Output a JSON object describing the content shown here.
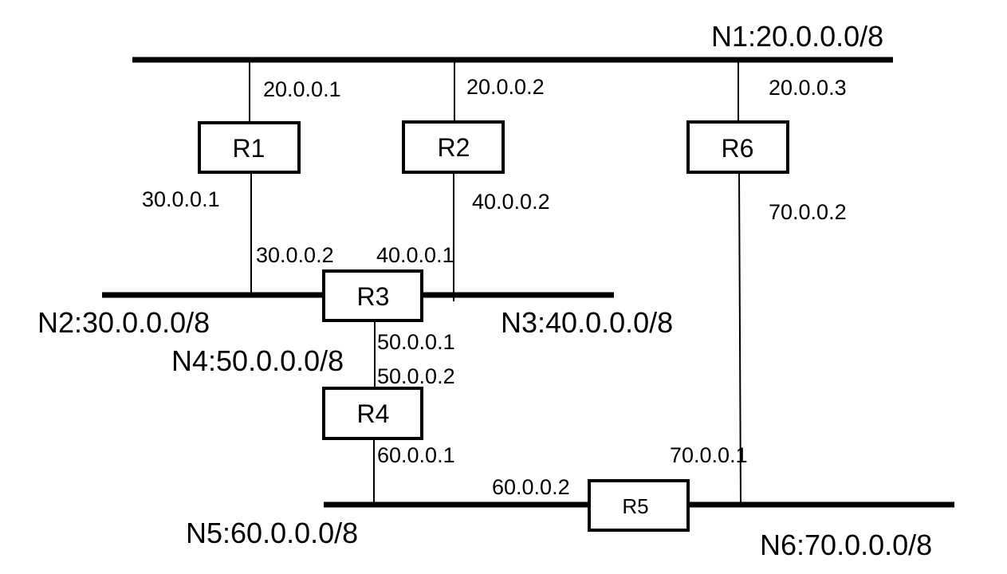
{
  "networks": {
    "n1": "N1:20.0.0.0/8",
    "n2": "N2:30.0.0.0/8",
    "n3": "N3:40.0.0.0/8",
    "n4": "N4:50.0.0.0/8",
    "n5": "N5:60.0.0.0/8",
    "n6": "N6:70.0.0.0/8"
  },
  "routers": {
    "r1": "R1",
    "r2": "R2",
    "r3": "R3",
    "r4": "R4",
    "r5": "R5",
    "r6": "R6"
  },
  "interfaces": {
    "r1_n1": "20.0.0.1",
    "r2_n1": "20.0.0.2",
    "r6_n1": "20.0.0.3",
    "r1_n2": "30.0.0.1",
    "r2_n3": "40.0.0.2",
    "r6_n6": "70.0.0.2",
    "r3_n2": "30.0.0.2",
    "r3_n3": "40.0.0.1",
    "r3_n4": "50.0.0.1",
    "r4_n4": "50.0.0.2",
    "r4_n5": "60.0.0.1",
    "r5_n6": "70.0.0.1",
    "r5_n5": "60.0.0.2"
  }
}
